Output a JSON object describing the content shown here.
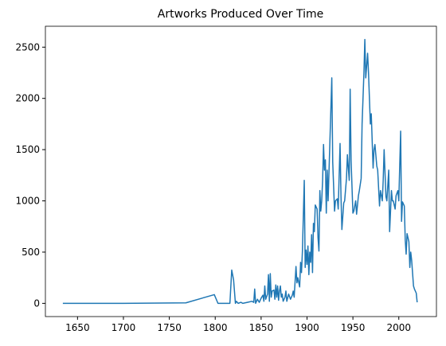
{
  "chart_data": {
    "type": "line",
    "title": "Artworks Produced Over Time",
    "x": [
      1634,
      1700,
      1768,
      1799,
      1803,
      1816,
      1818,
      1820,
      1822,
      1823,
      1825,
      1828,
      1830,
      1835,
      1840,
      1842,
      1843,
      1844,
      1846,
      1848,
      1850,
      1852,
      1853,
      1854,
      1855,
      1857,
      1858,
      1859,
      1860,
      1861,
      1862,
      1864,
      1865,
      1866,
      1867,
      1868,
      1869,
      1870,
      1871,
      1872,
      1873,
      1874,
      1876,
      1877,
      1878,
      1880,
      1882,
      1884,
      1885,
      1886,
      1888,
      1889,
      1890,
      1892,
      1893,
      1894,
      1895,
      1897,
      1898,
      1899,
      1900,
      1901,
      1902,
      1903,
      1904,
      1905,
      1906,
      1907,
      1908,
      1909,
      1910,
      1911,
      1912,
      1913,
      1914,
      1915,
      1916,
      1917,
      1918,
      1919,
      1920,
      1921,
      1922,
      1923,
      1927,
      1928,
      1930,
      1931,
      1933,
      1934,
      1936,
      1937,
      1938,
      1940,
      1941,
      1943,
      1944,
      1946,
      1947,
      1948,
      1950,
      1951,
      1953,
      1954,
      1956,
      1957,
      1959,
      1960,
      1962,
      1963,
      1964,
      1966,
      1967,
      1969,
      1970,
      1972,
      1973,
      1974,
      1976,
      1977,
      1979,
      1980,
      1982,
      1983,
      1984,
      1986,
      1987,
      1989,
      1990,
      1992,
      1993,
      1994,
      1996,
      1997,
      1999,
      2000,
      2002,
      2003,
      2004,
      2006,
      2007,
      2008,
      2009,
      2011,
      2012,
      2013,
      2014,
      2016,
      2017,
      2019,
      2020
    ],
    "series": [
      {
        "name": "Artworks",
        "color": "#1f77b4",
        "values": [
          0,
          0,
          5,
          85,
          0,
          0,
          325,
          230,
          0,
          20,
          0,
          10,
          0,
          10,
          20,
          10,
          140,
          0,
          40,
          10,
          50,
          80,
          20,
          170,
          40,
          90,
          280,
          20,
          290,
          60,
          120,
          130,
          40,
          180,
          60,
          170,
          30,
          120,
          170,
          60,
          90,
          20,
          60,
          120,
          20,
          90,
          40,
          80,
          120,
          60,
          360,
          200,
          250,
          160,
          400,
          300,
          510,
          1200,
          350,
          520,
          380,
          560,
          280,
          500,
          400,
          670,
          300,
          780,
          700,
          960,
          940,
          920,
          640,
          510,
          1100,
          900,
          1000,
          1200,
          1550,
          1300,
          1400,
          880,
          1300,
          1000,
          2200,
          1380,
          900,
          1000,
          1020,
          920,
          1560,
          1050,
          720,
          980,
          1000,
          1220,
          1450,
          1200,
          2090,
          1400,
          880,
          900,
          1000,
          870,
          1050,
          1100,
          1220,
          1750,
          2250,
          2575,
          2200,
          2440,
          2250,
          1750,
          1850,
          1320,
          1500,
          1550,
          1340,
          1300,
          950,
          1100,
          1000,
          1200,
          1500,
          1040,
          1000,
          1300,
          700,
          1100,
          1000,
          1000,
          920,
          1050,
          1100,
          1000,
          1680,
          800,
          990,
          950,
          620,
          480,
          680,
          600,
          350,
          500,
          420,
          170,
          140,
          100,
          10
        ]
      }
    ],
    "xlim": [
      1615,
      2041
    ],
    "xticks": [
      1650,
      1700,
      1750,
      1800,
      1850,
      1900,
      1950,
      2000
    ],
    "ylim": [
      -129,
      2704
    ],
    "yticks": [
      0,
      500,
      1000,
      1500,
      2000,
      2500
    ],
    "grid": false
  }
}
